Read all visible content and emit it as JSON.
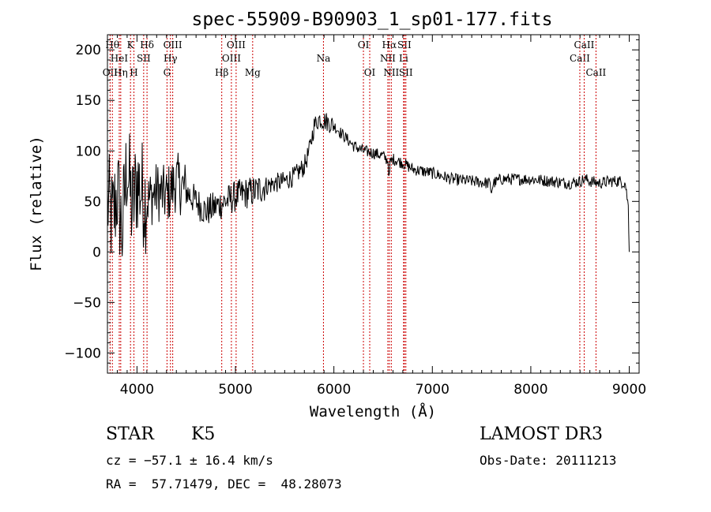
{
  "chart_data": {
    "type": "line",
    "title": "spec-55909-B90903_1_sp01-177.fits",
    "xlabel": "Wavelength (Å)",
    "ylabel": "Flux (relative)",
    "xlim": [
      3700,
      9100
    ],
    "ylim": [
      -120,
      215
    ],
    "xticks": [
      4000,
      5000,
      6000,
      7000,
      8000,
      9000
    ],
    "yticks": [
      -100,
      -50,
      0,
      50,
      100,
      150,
      200
    ],
    "series": [
      {
        "name": "flux",
        "x": [
          3700,
          3750,
          3800,
          3850,
          3900,
          3950,
          4000,
          4100,
          4200,
          4300,
          4400,
          4500,
          4600,
          4700,
          4800,
          4900,
          5000,
          5100,
          5200,
          5300,
          5400,
          5500,
          5600,
          5700,
          5750,
          5800,
          5850,
          5900,
          5950,
          6000,
          6050,
          6100,
          6150,
          6200,
          6300,
          6400,
          6500,
          6550,
          6563,
          6570,
          6600,
          6700,
          6800,
          6900,
          7000,
          7200,
          7400,
          7580,
          7600,
          7620,
          7700,
          8000,
          8200,
          8400,
          8500,
          8550,
          8600,
          8700,
          8800,
          8900,
          8960,
          8990,
          9000
        ],
        "y": [
          50,
          30,
          60,
          20,
          90,
          40,
          70,
          50,
          60,
          55,
          70,
          60,
          50,
          40,
          45,
          50,
          55,
          58,
          60,
          65,
          68,
          70,
          75,
          85,
          100,
          125,
          132,
          130,
          128,
          125,
          120,
          115,
          110,
          105,
          100,
          98,
          95,
          90,
          72,
          88,
          92,
          88,
          82,
          80,
          78,
          72,
          70,
          68,
          60,
          68,
          72,
          72,
          70,
          68,
          70,
          72,
          70,
          68,
          70,
          70,
          68,
          45,
          0
        ]
      }
    ],
    "line_markers": [
      {
        "label": "OII",
        "wavelength": 3727,
        "row": 3
      },
      {
        "label": "Hθ",
        "wavelength": 3750,
        "row": 1
      },
      {
        "label": "Hη",
        "wavelength": 3835,
        "row": 3
      },
      {
        "label": "HeI",
        "wavelength": 3820,
        "row": 2
      },
      {
        "label": "K",
        "wavelength": 3934,
        "row": 1
      },
      {
        "label": "H",
        "wavelength": 3969,
        "row": 3
      },
      {
        "label": "SII",
        "wavelength": 4068,
        "row": 2
      },
      {
        "label": "Hδ",
        "wavelength": 4102,
        "row": 1
      },
      {
        "label": "G",
        "wavelength": 4305,
        "row": 3
      },
      {
        "label": "Hγ",
        "wavelength": 4340,
        "row": 2
      },
      {
        "label": "OIII",
        "wavelength": 4363,
        "row": 1
      },
      {
        "label": "Hβ",
        "wavelength": 4861,
        "row": 3
      },
      {
        "label": "OIII",
        "wavelength": 4959,
        "row": 2
      },
      {
        "label": "OIII",
        "wavelength": 5007,
        "row": 1
      },
      {
        "label": "Mg",
        "wavelength": 5175,
        "row": 3
      },
      {
        "label": "Na",
        "wavelength": 5894,
        "row": 2
      },
      {
        "label": "OI",
        "wavelength": 6300,
        "row": 1
      },
      {
        "label": "OI",
        "wavelength": 6364,
        "row": 3
      },
      {
        "label": "NII",
        "wavelength": 6548,
        "row": 2
      },
      {
        "label": "Hα",
        "wavelength": 6563,
        "row": 1
      },
      {
        "label": "NII",
        "wavelength": 6583,
        "row": 3
      },
      {
        "label": "Li",
        "wavelength": 6708,
        "row": 2
      },
      {
        "label": "SII",
        "wavelength": 6716,
        "row": 1
      },
      {
        "label": "SII",
        "wavelength": 6731,
        "row": 3
      },
      {
        "label": "CaII",
        "wavelength": 8498,
        "row": 2
      },
      {
        "label": "CaII",
        "wavelength": 8542,
        "row": 1
      },
      {
        "label": "CaII",
        "wavelength": 8662,
        "row": 3
      }
    ],
    "marker_color": "#cc0000",
    "grid": false
  },
  "footer": {
    "object_class": "STAR",
    "subclass": "K5",
    "survey": "LAMOST DR3",
    "cz_text": "cz = −57.1 ± 16.4 km/s",
    "obs_date_text": "Obs-Date: 20111213",
    "coords_text": "RA =  57.71479, DEC =  48.28073"
  }
}
